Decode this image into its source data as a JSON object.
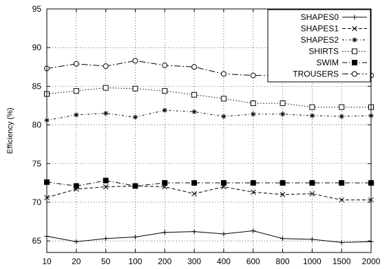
{
  "chart_data": {
    "type": "line",
    "title": "",
    "xlabel": "",
    "ylabel": "Efficiency (%)",
    "categories": [
      "10",
      "20",
      "50",
      "100",
      "200",
      "300",
      "400",
      "600",
      "800",
      "1000",
      "1500",
      "2000"
    ],
    "ylim": [
      63.5,
      95
    ],
    "yticks": [
      65,
      70,
      75,
      80,
      85,
      90,
      95
    ],
    "grid": true,
    "legend_position": "top-right",
    "series": [
      {
        "name": "SHAPES0",
        "marker": "plus",
        "dash": "solid",
        "values": [
          65.6,
          64.9,
          65.3,
          65.5,
          66.1,
          66.2,
          65.9,
          66.3,
          65.3,
          65.2,
          64.8,
          64.9
        ]
      },
      {
        "name": "SHAPES1",
        "marker": "cross",
        "dash": "dashed",
        "values": [
          70.6,
          71.7,
          72.0,
          72.1,
          72.0,
          71.1,
          72.0,
          71.3,
          71.0,
          71.1,
          70.3,
          70.3
        ]
      },
      {
        "name": "SHAPES2",
        "marker": "star",
        "dash": "dashdot-short",
        "values": [
          80.6,
          81.3,
          81.5,
          81.0,
          81.9,
          81.7,
          81.1,
          81.4,
          81.4,
          81.2,
          81.1,
          81.2
        ]
      },
      {
        "name": "SHIRTS",
        "marker": "square-open",
        "dash": "dotted",
        "values": [
          84.0,
          84.4,
          84.8,
          84.7,
          84.4,
          83.9,
          83.4,
          82.8,
          82.8,
          82.3,
          82.3,
          82.3
        ]
      },
      {
        "name": "SWIM",
        "marker": "square-filled",
        "dash": "dashdot",
        "values": [
          72.6,
          72.1,
          72.8,
          72.1,
          72.5,
          72.5,
          72.5,
          72.5,
          72.5,
          72.5,
          72.5,
          72.5
        ]
      },
      {
        "name": "TROUSERS",
        "marker": "circle-open",
        "dash": "dashdot-long",
        "values": [
          87.3,
          87.9,
          87.6,
          88.3,
          87.7,
          87.5,
          86.6,
          86.4,
          86.4,
          86.4,
          86.4,
          86.4
        ]
      }
    ]
  }
}
